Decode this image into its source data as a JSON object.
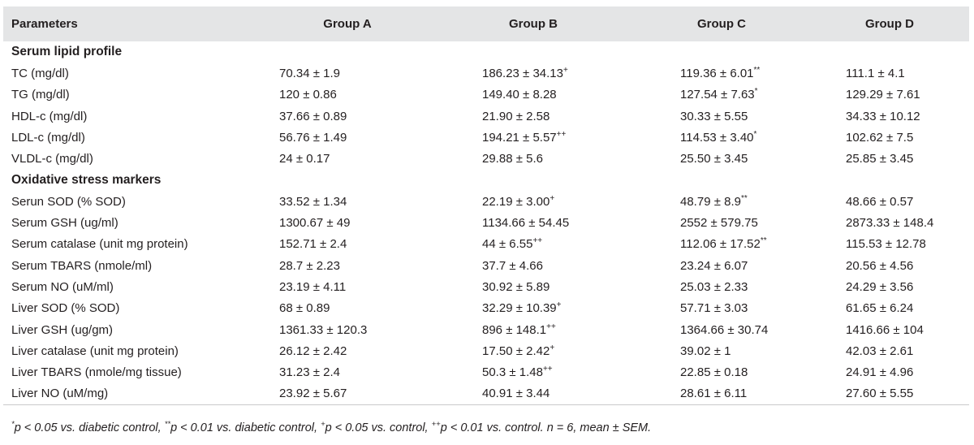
{
  "headers": [
    "Parameters",
    "Group A",
    "Group B",
    "Group C",
    "Group D"
  ],
  "sections": [
    {
      "title": "Serum lipid profile",
      "rows": [
        {
          "label": "TC (mg/dl)",
          "cells": [
            {
              "v": "70.34 ± 1.9",
              "s": ""
            },
            {
              "v": "186.23 ± 34.13",
              "s": "+"
            },
            {
              "v": "119.36 ± 6.01",
              "s": "**"
            },
            {
              "v": "111.1 ± 4.1",
              "s": ""
            }
          ]
        },
        {
          "label": "TG (mg/dl)",
          "cells": [
            {
              "v": "120 ± 0.86",
              "s": ""
            },
            {
              "v": "149.40 ± 8.28",
              "s": ""
            },
            {
              "v": "127.54 ± 7.63",
              "s": "*"
            },
            {
              "v": "129.29 ± 7.61",
              "s": ""
            }
          ]
        },
        {
          "label": "HDL-c (mg/dl)",
          "cells": [
            {
              "v": "37.66 ± 0.89",
              "s": ""
            },
            {
              "v": "21.90 ± 2.58",
              "s": ""
            },
            {
              "v": "30.33 ± 5.55",
              "s": ""
            },
            {
              "v": "34.33 ± 10.12",
              "s": ""
            }
          ]
        },
        {
          "label": "LDL-c (mg/dl)",
          "cells": [
            {
              "v": "56.76 ± 1.49",
              "s": ""
            },
            {
              "v": "194.21 ± 5.57",
              "s": "++"
            },
            {
              "v": "114.53 ± 3.40",
              "s": "*"
            },
            {
              "v": "102.62 ± 7.5",
              "s": ""
            }
          ]
        },
        {
          "label": "VLDL-c (mg/dl)",
          "cells": [
            {
              "v": "24 ± 0.17",
              "s": ""
            },
            {
              "v": "29.88 ± 5.6",
              "s": ""
            },
            {
              "v": "25.50 ± 3.45",
              "s": ""
            },
            {
              "v": "25.85 ± 3.45",
              "s": ""
            }
          ]
        }
      ]
    },
    {
      "title": "Oxidative stress markers",
      "rows": [
        {
          "label": "Serun SOD (% SOD)",
          "cells": [
            {
              "v": "33.52 ± 1.34",
              "s": ""
            },
            {
              "v": "22.19 ± 3.00",
              "s": "+"
            },
            {
              "v": "48.79 ± 8.9",
              "s": "**"
            },
            {
              "v": "48.66 ± 0.57",
              "s": ""
            }
          ]
        },
        {
          "label": "Serum GSH (ug/ml)",
          "cells": [
            {
              "v": "1300.67 ± 49",
              "s": ""
            },
            {
              "v": "1134.66 ± 54.45",
              "s": ""
            },
            {
              "v": "2552 ± 579.75",
              "s": ""
            },
            {
              "v": "2873.33 ± 148.4",
              "s": ""
            }
          ]
        },
        {
          "label": "Serum catalase (unit mg protein)",
          "cells": [
            {
              "v": "152.71 ± 2.4",
              "s": ""
            },
            {
              "v": "44 ± 6.55",
              "s": "++"
            },
            {
              "v": "112.06 ± 17.52",
              "s": "**"
            },
            {
              "v": "115.53 ± 12.78",
              "s": ""
            }
          ]
        },
        {
          "label": "Serum TBARS (nmole/ml)",
          "cells": [
            {
              "v": "28.7 ± 2.23",
              "s": ""
            },
            {
              "v": "37.7 ± 4.66",
              "s": ""
            },
            {
              "v": "23.24 ± 6.07",
              "s": ""
            },
            {
              "v": "20.56 ± 4.56",
              "s": ""
            }
          ]
        },
        {
          "label": "Serum NO (uM/ml)",
          "cells": [
            {
              "v": "23.19 ± 4.11",
              "s": ""
            },
            {
              "v": "30.92 ± 5.89",
              "s": ""
            },
            {
              "v": "25.03 ± 2.33",
              "s": ""
            },
            {
              "v": "24.29 ± 3.56",
              "s": ""
            }
          ]
        },
        {
          "label": "Liver SOD (% SOD)",
          "cells": [
            {
              "v": "68 ± 0.89",
              "s": ""
            },
            {
              "v": "32.29 ± 10.39",
              "s": "+"
            },
            {
              "v": "57.71 ± 3.03",
              "s": ""
            },
            {
              "v": "61.65 ± 6.24",
              "s": ""
            }
          ]
        },
        {
          "label": "Liver GSH (ug/gm)",
          "cells": [
            {
              "v": "1361.33 ± 120.3",
              "s": ""
            },
            {
              "v": "896 ± 148.1",
              "s": "++"
            },
            {
              "v": "1364.66 ± 30.74",
              "s": ""
            },
            {
              "v": "1416.66 ± 104",
              "s": ""
            }
          ]
        },
        {
          "label": "Liver catalase (unit mg protein)",
          "cells": [
            {
              "v": "26.12 ± 2.42",
              "s": ""
            },
            {
              "v": "17.50 ± 2.42",
              "s": "+"
            },
            {
              "v": "39.02 ± 1",
              "s": ""
            },
            {
              "v": "42.03 ± 2.61",
              "s": ""
            }
          ]
        },
        {
          "label": "Liver TBARS (nmole/mg tissue)",
          "cells": [
            {
              "v": "31.23 ± 2.4",
              "s": ""
            },
            {
              "v": "50.3 ± 1.48",
              "s": "++"
            },
            {
              "v": "22.85 ± 0.18",
              "s": ""
            },
            {
              "v": "24.91 ± 4.96",
              "s": ""
            }
          ]
        },
        {
          "label": "Liver NO (uM/mg)",
          "cells": [
            {
              "v": "23.92 ± 5.67",
              "s": ""
            },
            {
              "v": "40.91 ± 3.44",
              "s": ""
            },
            {
              "v": "28.61 ± 6.11",
              "s": ""
            },
            {
              "v": "27.60 ± 5.55",
              "s": ""
            }
          ]
        }
      ]
    }
  ],
  "footnote": [
    {
      "sup": "*",
      "text": "p < 0.05 vs. diabetic control, "
    },
    {
      "sup": "**",
      "text": "p < 0.01 vs. diabetic control, "
    },
    {
      "sup": "+",
      "text": "p < 0.05 vs. control, "
    },
    {
      "sup": "++",
      "text": "p < 0.01 vs. control. n = 6, mean ± SEM."
    }
  ]
}
